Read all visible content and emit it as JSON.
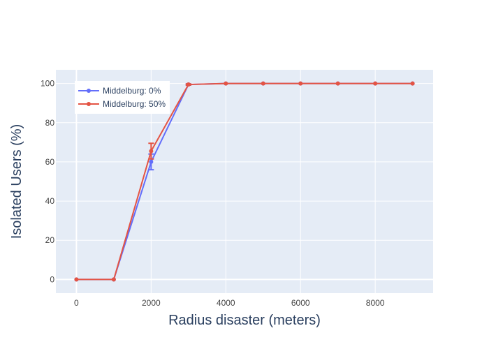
{
  "chart_data": {
    "type": "line",
    "title": "",
    "xlabel": "Radius disaster (meters)",
    "ylabel": "Isolated Users (%)",
    "x": [
      0,
      1000,
      2000,
      3000,
      4000,
      5000,
      6000,
      7000,
      8000,
      9000
    ],
    "xlim": [
      -550,
      9550
    ],
    "ylim": [
      -7,
      107
    ],
    "xticks": [
      0,
      2000,
      4000,
      6000,
      8000
    ],
    "yticks": [
      0,
      20,
      40,
      60,
      80,
      100
    ],
    "grid": true,
    "legend_position": "top-left",
    "series": [
      {
        "name": "Middelburg: 0%",
        "color": "#636efa",
        "values": [
          0,
          0,
          60,
          99.5,
          100,
          100,
          100,
          100,
          100,
          100
        ],
        "error": [
          0,
          0,
          4,
          0.3,
          0,
          0,
          0,
          0,
          0,
          0
        ]
      },
      {
        "name": "Middelburg: 50%",
        "color": "#e45444",
        "values": [
          0,
          0,
          65.5,
          99.5,
          100,
          100,
          100,
          100,
          100,
          100
        ],
        "error": [
          0,
          0,
          4,
          0.3,
          0,
          0,
          0,
          0,
          0,
          0
        ]
      }
    ]
  },
  "colors": {
    "plot_background": "#e5ecf6",
    "grid": "#ffffff",
    "legend_background": "#ffffff"
  }
}
